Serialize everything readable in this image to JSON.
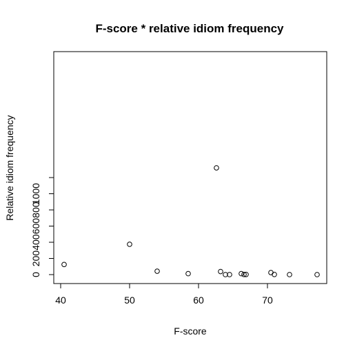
{
  "chart_data": {
    "type": "scatter",
    "title": "F-score * relative idiom frequency",
    "xlabel": "F-score",
    "ylabel": "Relative idiom frequency",
    "xlim": [
      39,
      78
    ],
    "ylim": [
      -50,
      1320
    ],
    "x_ticks": [
      40,
      50,
      60,
      70
    ],
    "y_ticks": [
      0,
      200,
      400,
      600,
      800,
      1000
    ],
    "y_tick_marks": [
      0,
      200,
      400,
      600,
      800,
      1000,
      1200
    ],
    "grid": false,
    "legend": "none",
    "series": [
      {
        "marker": "open-circle",
        "color": "#000000",
        "points": [
          {
            "x": 40.5,
            "y": 125
          },
          {
            "x": 50,
            "y": 375
          },
          {
            "x": 54,
            "y": 42
          },
          {
            "x": 58.5,
            "y": 12
          },
          {
            "x": 62.6,
            "y": 1320
          },
          {
            "x": 63.2,
            "y": 38
          },
          {
            "x": 63.9,
            "y": 0
          },
          {
            "x": 64.5,
            "y": 0
          },
          {
            "x": 66.2,
            "y": 12
          },
          {
            "x": 66.6,
            "y": 2
          },
          {
            "x": 66.9,
            "y": 2
          },
          {
            "x": 70.5,
            "y": 25
          },
          {
            "x": 71,
            "y": 2
          },
          {
            "x": 73.2,
            "y": 0
          },
          {
            "x": 77.2,
            "y": 0
          }
        ]
      }
    ]
  }
}
